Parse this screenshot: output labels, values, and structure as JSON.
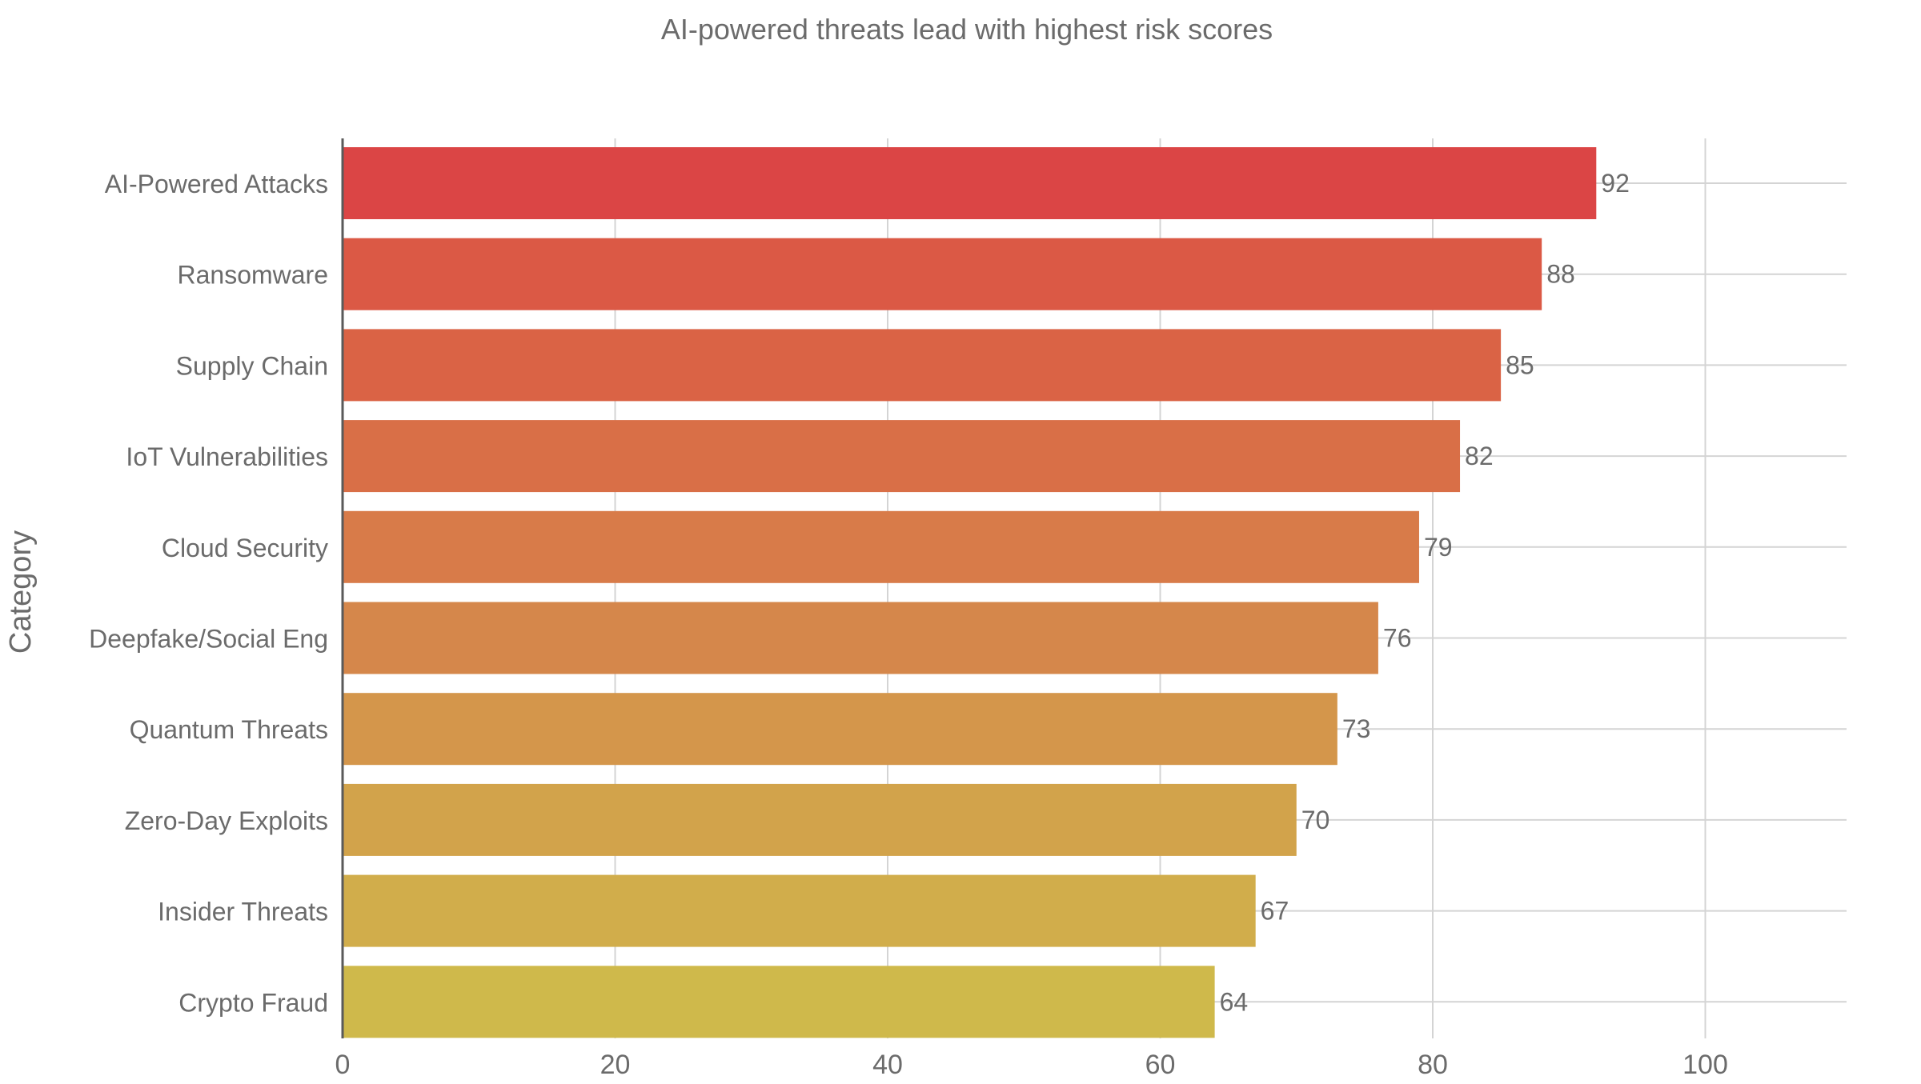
{
  "chart_data": {
    "type": "bar",
    "orientation": "horizontal",
    "title": "AI-powered threats lead with highest risk scores",
    "xlabel": "",
    "ylabel": "Category",
    "xlim": [
      0,
      105
    ],
    "x_ticks": [
      0,
      20,
      40,
      60,
      80,
      100
    ],
    "x_tick_labels": [
      "0",
      "20",
      "40",
      "60",
      "80",
      "100"
    ],
    "grid": true,
    "legend": "none",
    "categories": [
      "AI-Powered Attacks",
      "Ransomware",
      "Supply Chain",
      "IoT Vulnerabilities",
      "Cloud Security",
      "Deepfake/Social Eng",
      "Quantum Threats",
      "Zero-Day Exploits",
      "Insider Threats",
      "Crypto Fraud"
    ],
    "values": [
      92,
      88,
      85,
      82,
      79,
      76,
      73,
      70,
      67,
      64
    ],
    "value_labels": [
      "92",
      "88",
      "85",
      "82",
      "79",
      "76",
      "73",
      "70",
      "67",
      "64"
    ],
    "bar_colors": [
      "#DB4545",
      "#DB5945",
      "#DA6345",
      "#D96F47",
      "#D87B49",
      "#D5874B",
      "#D4964B",
      "#D2A34B",
      "#D1AD4B",
      "#CFB94B"
    ],
    "text_color": "#6b6b6b",
    "grid_color": "#d4d4d4",
    "axis_color": "#5a5a5a"
  }
}
